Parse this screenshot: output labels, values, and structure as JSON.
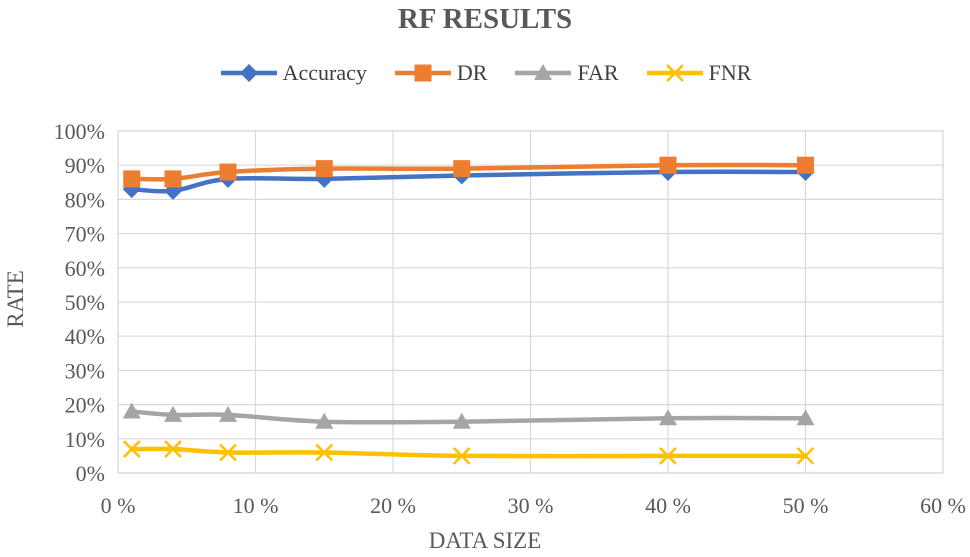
{
  "chart_data": {
    "type": "line",
    "title": "RF RESULTS",
    "xlabel": "DATA SIZE",
    "ylabel": "RATE",
    "xlim": [
      0,
      60
    ],
    "ylim": [
      0,
      100
    ],
    "x_ticks": [
      "0 %",
      "10 %",
      "20 %",
      "30 %",
      "40 %",
      "50 %",
      "60 %"
    ],
    "y_ticks": [
      "0%",
      "10%",
      "20%",
      "30%",
      "40%",
      "50%",
      "60%",
      "70%",
      "80%",
      "90%",
      "100%"
    ],
    "grid": true,
    "legend_position": "top",
    "x": [
      1,
      4,
      8,
      15,
      25,
      40,
      50
    ],
    "series": [
      {
        "name": "Accuracy",
        "color": "#4472C4",
        "marker": "diamond",
        "values": [
          83,
          82.5,
          86,
          86,
          87,
          88,
          88
        ]
      },
      {
        "name": "DR",
        "color": "#ED7D31",
        "marker": "square",
        "values": [
          86,
          86,
          88,
          89,
          89,
          90,
          90
        ]
      },
      {
        "name": "FAR",
        "color": "#A5A5A5",
        "marker": "triangle",
        "values": [
          18,
          17,
          17,
          15,
          15,
          16,
          16
        ]
      },
      {
        "name": "FNR",
        "color": "#FFC000",
        "marker": "x",
        "values": [
          7,
          7,
          6,
          6,
          5,
          5,
          5
        ]
      }
    ]
  }
}
